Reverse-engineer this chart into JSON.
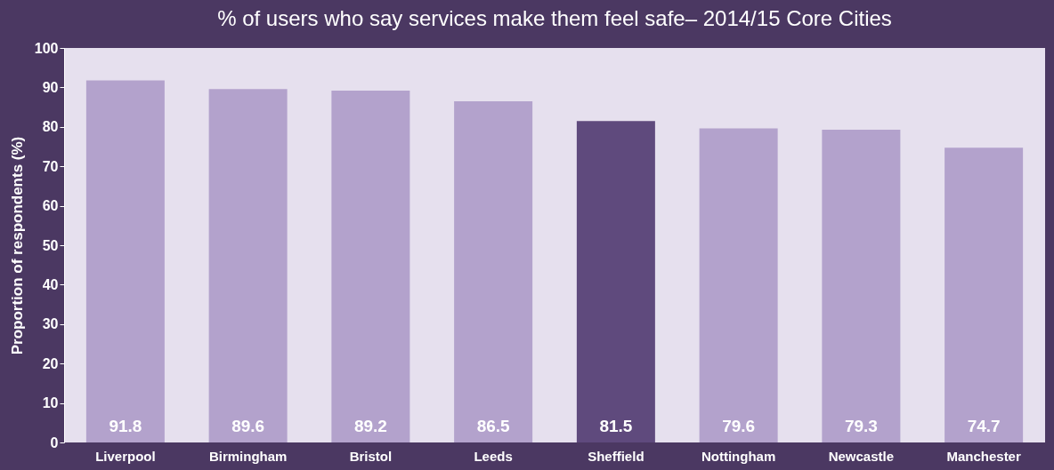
{
  "chart_data": {
    "type": "bar",
    "title": "% of users who say services make them feel safe– 2014/15 Core Cities",
    "ylabel": "Proportion of respondents (%)",
    "categories": [
      "Liverpool",
      "Birmingham",
      "Bristol",
      "Leeds",
      "Sheffield",
      "Nottingham",
      "Newcastle",
      "Manchester"
    ],
    "values": [
      91.8,
      89.6,
      89.2,
      86.5,
      81.5,
      79.6,
      79.3,
      74.7
    ],
    "colors": [
      "#b3a2cc",
      "#b3a2cc",
      "#b3a2cc",
      "#b3a2cc",
      "#5f4a7d",
      "#b3a2cc",
      "#b3a2cc",
      "#b3a2cc"
    ],
    "ylim": [
      0,
      100
    ],
    "yticks": [
      0,
      10,
      20,
      30,
      40,
      50,
      60,
      70,
      80,
      90,
      100
    ],
    "data_labels": true,
    "grid": false,
    "legend": false
  }
}
